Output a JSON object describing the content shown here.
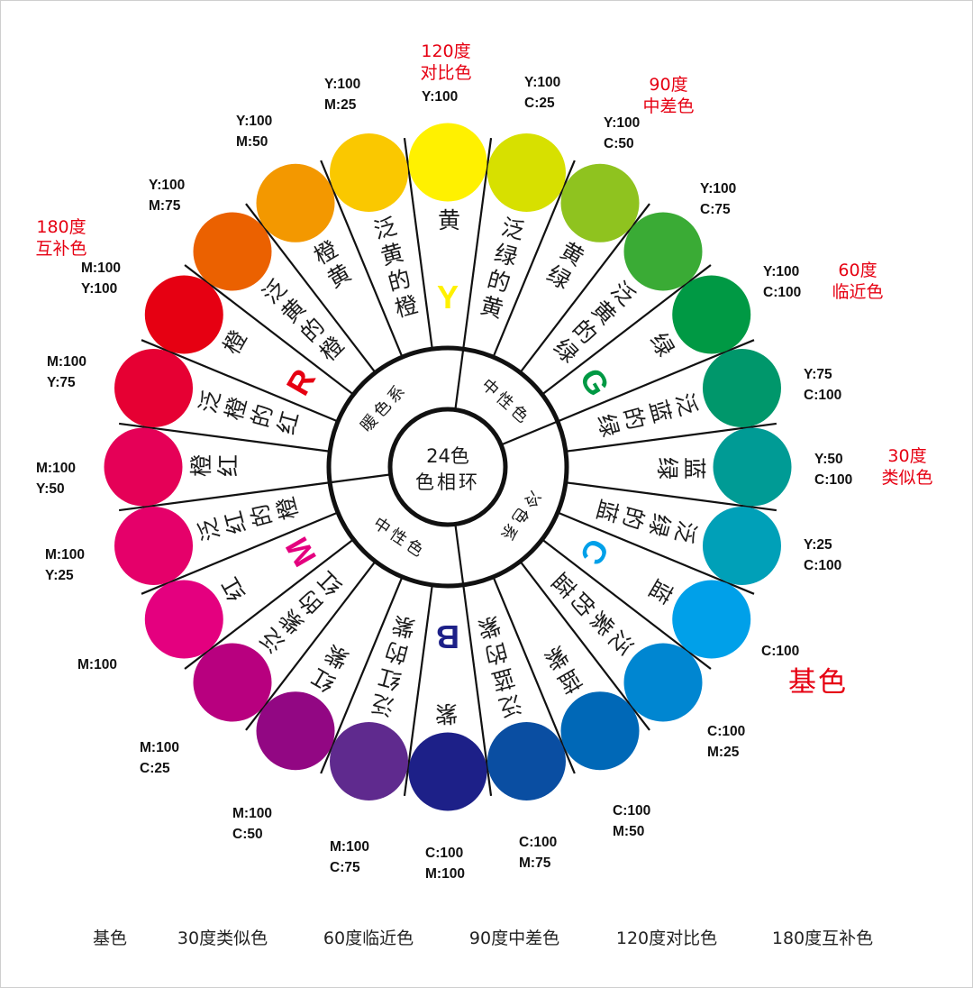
{
  "center": {
    "line1": "24色",
    "line2": "色相环"
  },
  "ring_labels": [
    "暖色系",
    "中性色",
    "冷色系",
    "中性色"
  ],
  "segments": [
    {
      "name": "黄",
      "cmyk": [
        "Y:100"
      ],
      "color": "#fff100",
      "letter": "Y",
      "letter_color": "#fff100"
    },
    {
      "name": "泛绿的黄",
      "cmyk": [
        "Y:100",
        "C:25"
      ],
      "color": "#d7e000"
    },
    {
      "name": "黄绿",
      "cmyk": [
        "Y:100",
        "C:50"
      ],
      "color": "#8fc31f"
    },
    {
      "name": "泛黄的绿",
      "cmyk": [
        "Y:100",
        "C:75"
      ],
      "color": "#3aab35"
    },
    {
      "name": "绿",
      "cmyk": [
        "Y:100",
        "C:100"
      ],
      "color": "#009944",
      "letter": "G",
      "letter_color": "#009944"
    },
    {
      "name": "泛蓝的绿",
      "cmyk": [
        "Y:75",
        "C:100"
      ],
      "color": "#00976b"
    },
    {
      "name": "蓝绿",
      "cmyk": [
        "Y:50",
        "C:100"
      ],
      "color": "#009b95"
    },
    {
      "name": "泛绿的蓝",
      "cmyk": [
        "Y:25",
        "C:100"
      ],
      "color": "#00a0b8"
    },
    {
      "name": "蓝",
      "cmyk": [
        "C:100"
      ],
      "color": "#00a0e9",
      "letter": "C",
      "letter_color": "#00a0e9"
    },
    {
      "name": "泛紫的蓝",
      "cmyk": [
        "C:100",
        "M:25"
      ],
      "color": "#0086d1"
    },
    {
      "name": "蓝紫",
      "cmyk": [
        "C:100",
        "M:50"
      ],
      "color": "#0068b7"
    },
    {
      "name": "泛蓝的紫",
      "cmyk": [
        "C:100",
        "M:75"
      ],
      "color": "#0a4ea2"
    },
    {
      "name": "紫",
      "cmyk": [
        "C:100",
        "M:100"
      ],
      "color": "#1d2088",
      "letter": "B",
      "letter_color": "#1d2088"
    },
    {
      "name": "泛红的紫",
      "cmyk": [
        "M:100",
        "C:75"
      ],
      "color": "#5f2a8e"
    },
    {
      "name": "红紫",
      "cmyk": [
        "M:100",
        "C:50"
      ],
      "color": "#920783"
    },
    {
      "name": "泛紫的红",
      "cmyk": [
        "M:100",
        "C:25"
      ],
      "color": "#b8007f"
    },
    {
      "name": "红",
      "cmyk": [
        "M:100"
      ],
      "color": "#e4007f",
      "letter": "M",
      "letter_color": "#e4007f"
    },
    {
      "name": "泛红的橙",
      "cmyk": [
        "M:100",
        "Y:25"
      ],
      "color": "#e5006a"
    },
    {
      "name": "橙红",
      "cmyk": [
        "M:100",
        "Y:50"
      ],
      "color": "#e50057"
    },
    {
      "name": "泛橙的红",
      "cmyk": [
        "M:100",
        "Y:75"
      ],
      "color": "#e60033"
    },
    {
      "name": "橙",
      "cmyk": [
        "M:100",
        "Y:100"
      ],
      "color": "#e60012",
      "letter": "R",
      "letter_color": "#e60012"
    },
    {
      "name": "泛黄的橙",
      "cmyk": [
        "Y:100",
        "M:75"
      ],
      "color": "#eb6100"
    },
    {
      "name": "橙黄",
      "cmyk": [
        "Y:100",
        "M:50"
      ],
      "color": "#f39800"
    },
    {
      "name": "泛黄的橙",
      "cmyk": [
        "Y:100",
        "M:25"
      ],
      "color": "#fac800"
    }
  ],
  "annotations": {
    "a120": [
      "120度",
      "对比色"
    ],
    "a90": [
      "90度",
      "中差色"
    ],
    "a60": [
      "60度",
      "临近色"
    ],
    "a30": [
      "30度",
      "类似色"
    ],
    "a180": [
      "180度",
      "互补色"
    ],
    "base": "基色",
    "color": "#e60012"
  },
  "legend": [
    "基色",
    "30度类似色",
    "60度临近色",
    "90度中差色",
    "120度对比色",
    "180度互补色"
  ]
}
